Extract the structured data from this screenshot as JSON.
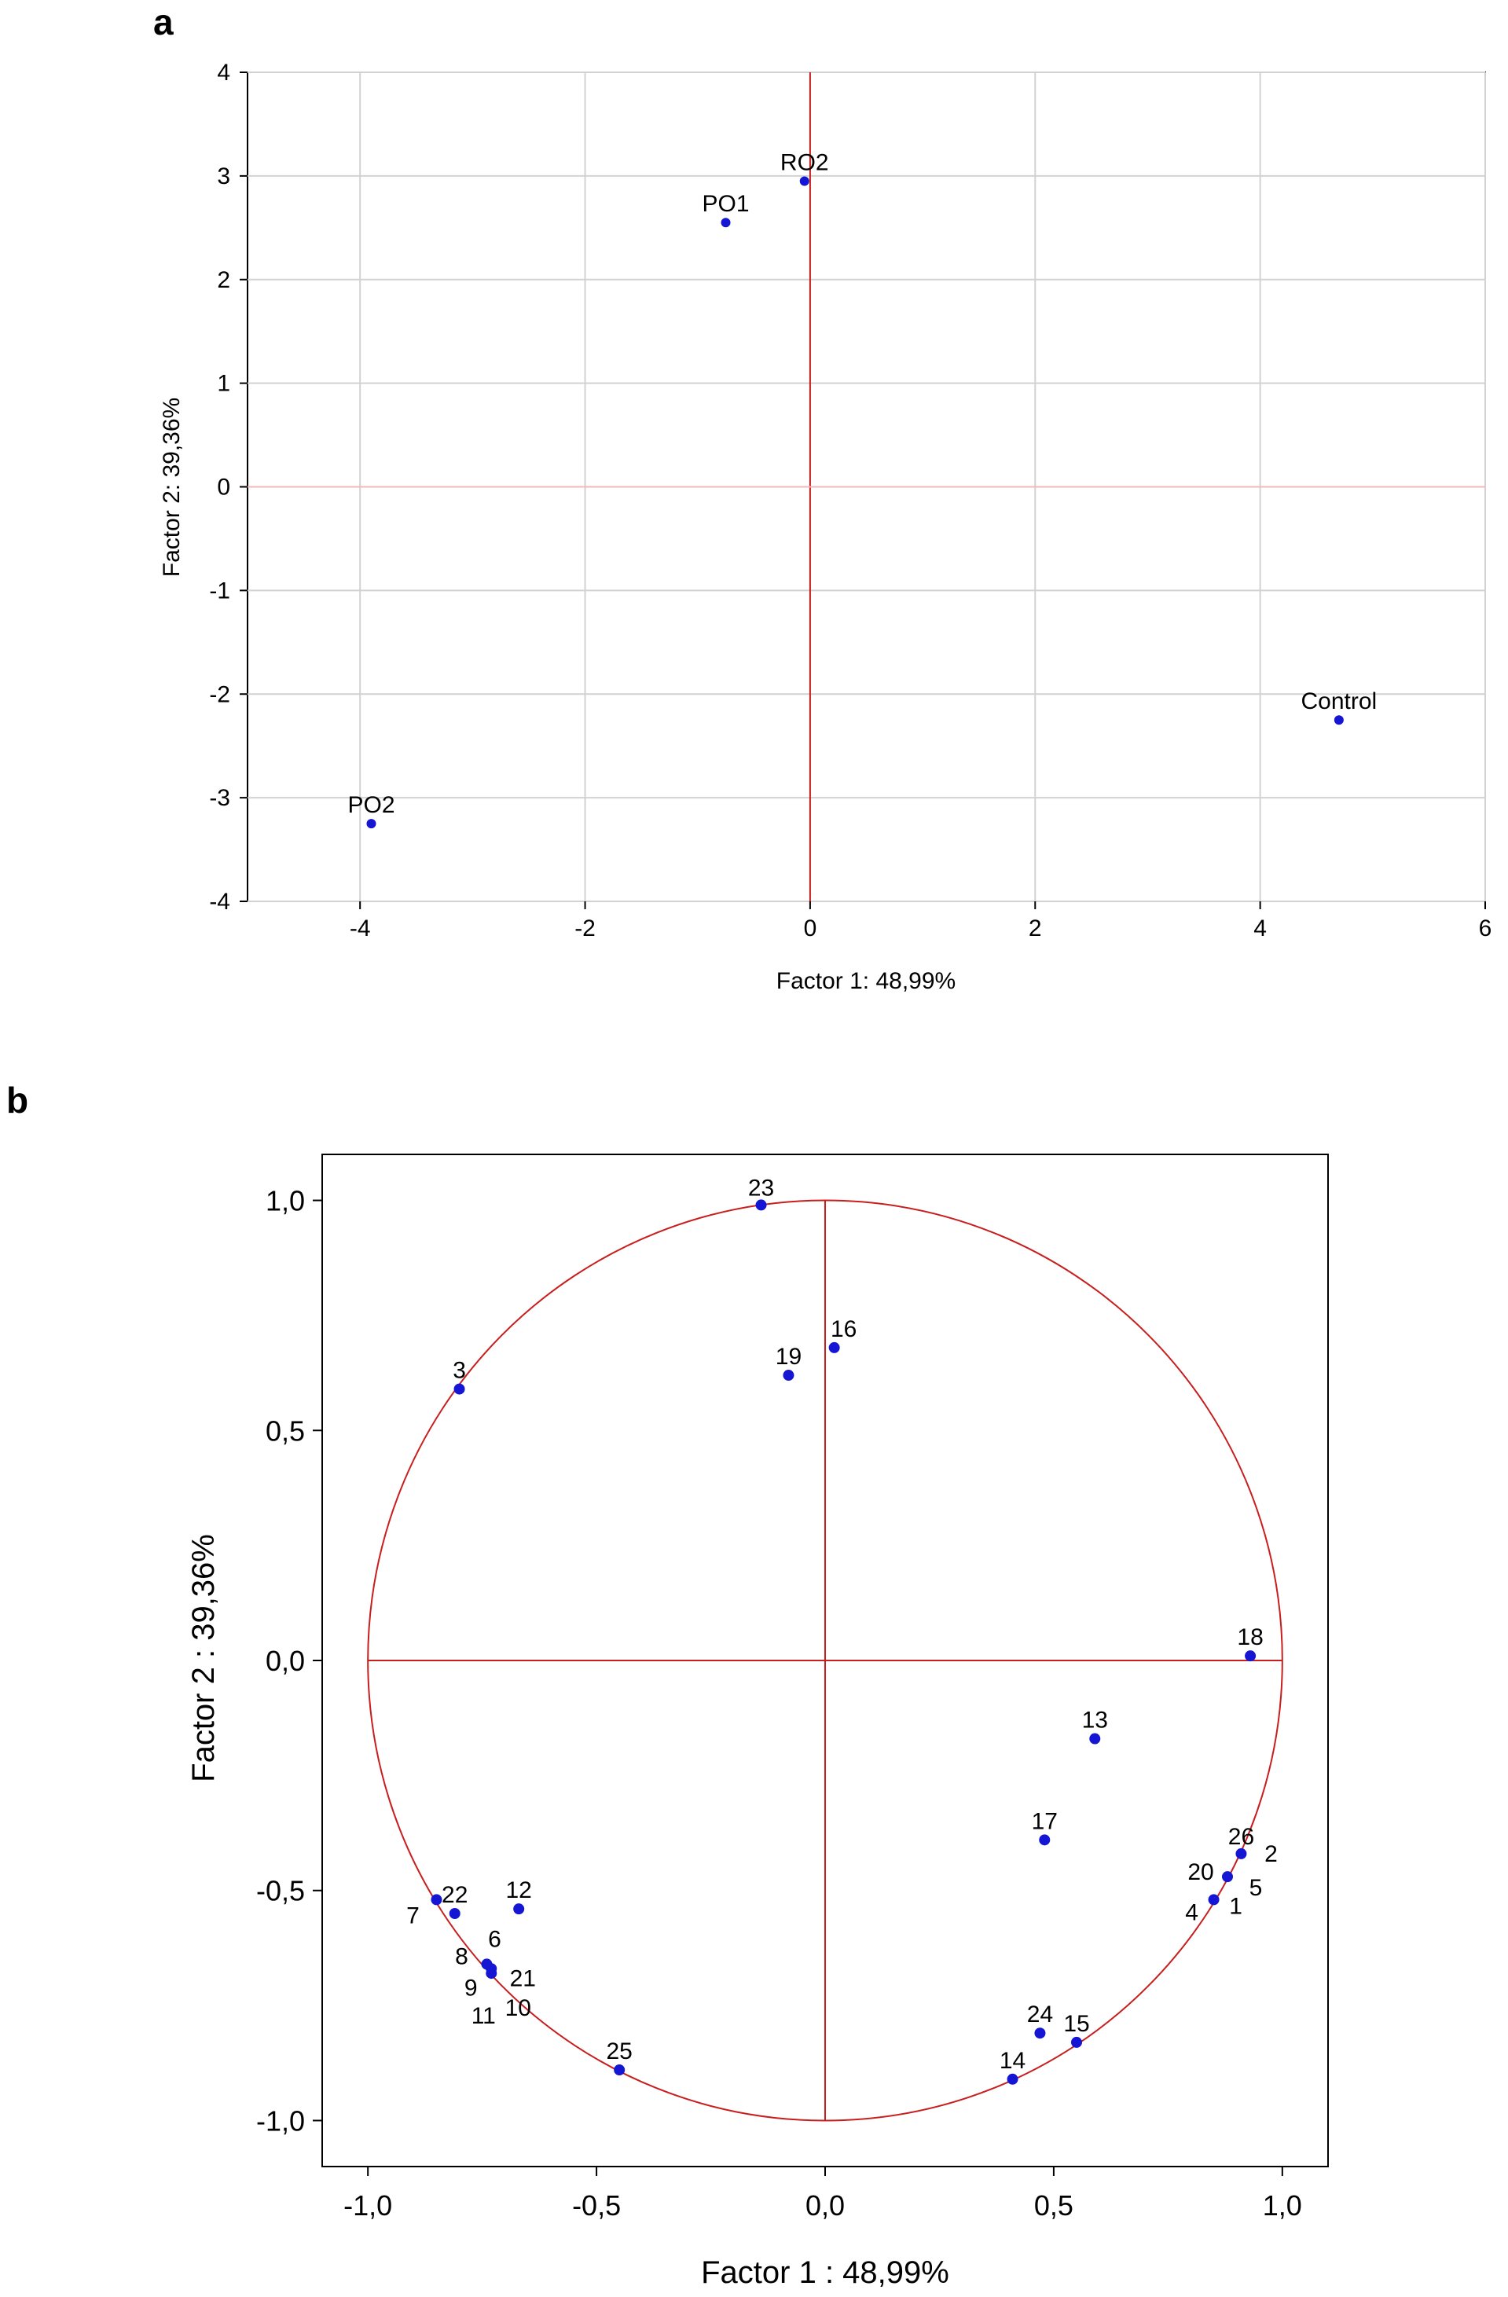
{
  "chart_data": [
    {
      "panel": "a",
      "type": "scatter",
      "xlabel": "Factor 1: 48,99%",
      "ylabel": "Factor 2: 39,36%",
      "xlim": [
        -5,
        6
      ],
      "ylim": [
        -4,
        4
      ],
      "xticks": [
        -4,
        -2,
        0,
        2,
        4,
        6
      ],
      "xtick_labels": [
        "-4",
        "-2",
        "0",
        "2",
        "4",
        "6"
      ],
      "yticks": [
        -4,
        -3,
        -2,
        -1,
        0,
        1,
        2,
        3,
        4
      ],
      "ytick_labels": [
        "-4",
        "-3",
        "-2",
        "-1",
        "0",
        "1",
        "2",
        "3",
        "4"
      ],
      "grid": true,
      "points": [
        {
          "label": "RO2",
          "x": -0.05,
          "y": 2.95
        },
        {
          "label": "PO1",
          "x": -0.75,
          "y": 2.55
        },
        {
          "label": "Control",
          "x": 4.7,
          "y": -2.25
        },
        {
          "label": "PO2",
          "x": -3.9,
          "y": -3.25
        }
      ]
    },
    {
      "panel": "b",
      "type": "scatter",
      "xlabel": "Factor 1 : 48,99%",
      "ylabel": "Factor 2 : 39,36%",
      "xlim": [
        -1.1,
        1.1
      ],
      "ylim": [
        -1.1,
        1.1
      ],
      "xticks": [
        -1.0,
        -0.5,
        0.0,
        0.5,
        1.0
      ],
      "xtick_labels": [
        "-1,0",
        "-0,5",
        "0,0",
        "0,5",
        "1,0"
      ],
      "yticks": [
        -1.0,
        -0.5,
        0.0,
        0.5,
        1.0
      ],
      "ytick_labels": [
        "-1,0",
        "-0,5",
        "0,0",
        "0,5",
        "1,0"
      ],
      "unit_circle": true,
      "points": [
        {
          "label": "23",
          "x": -0.14,
          "y": 0.99
        },
        {
          "label": "16",
          "x": 0.02,
          "y": 0.68
        },
        {
          "label": "19",
          "x": -0.08,
          "y": 0.62
        },
        {
          "label": "3",
          "x": -0.8,
          "y": 0.59
        },
        {
          "label": "18",
          "x": 0.93,
          "y": 0.01
        },
        {
          "label": "13",
          "x": 0.59,
          "y": -0.17
        },
        {
          "label": "17",
          "x": 0.48,
          "y": -0.39
        },
        {
          "label": "26",
          "x": 0.91,
          "y": -0.42
        },
        {
          "label": "2",
          "x": 0.91,
          "y": -0.42
        },
        {
          "label": "20",
          "x": 0.88,
          "y": -0.47
        },
        {
          "label": "5",
          "x": 0.88,
          "y": -0.47
        },
        {
          "label": "4",
          "x": 0.85,
          "y": -0.52
        },
        {
          "label": "1",
          "x": 0.85,
          "y": -0.52
        },
        {
          "label": "12",
          "x": -0.67,
          "y": -0.54
        },
        {
          "label": "22",
          "x": -0.81,
          "y": -0.55
        },
        {
          "label": "7",
          "x": -0.85,
          "y": -0.52
        },
        {
          "label": "8",
          "x": -0.74,
          "y": -0.66
        },
        {
          "label": "6",
          "x": -0.74,
          "y": -0.66
        },
        {
          "label": "9",
          "x": -0.73,
          "y": -0.67
        },
        {
          "label": "21",
          "x": -0.73,
          "y": -0.67
        },
        {
          "label": "11",
          "x": -0.73,
          "y": -0.68
        },
        {
          "label": "10",
          "x": -0.73,
          "y": -0.68
        },
        {
          "label": "25",
          "x": -0.45,
          "y": -0.89
        },
        {
          "label": "24",
          "x": 0.47,
          "y": -0.81
        },
        {
          "label": "15",
          "x": 0.55,
          "y": -0.83
        },
        {
          "label": "14",
          "x": 0.41,
          "y": -0.91
        }
      ]
    }
  ]
}
